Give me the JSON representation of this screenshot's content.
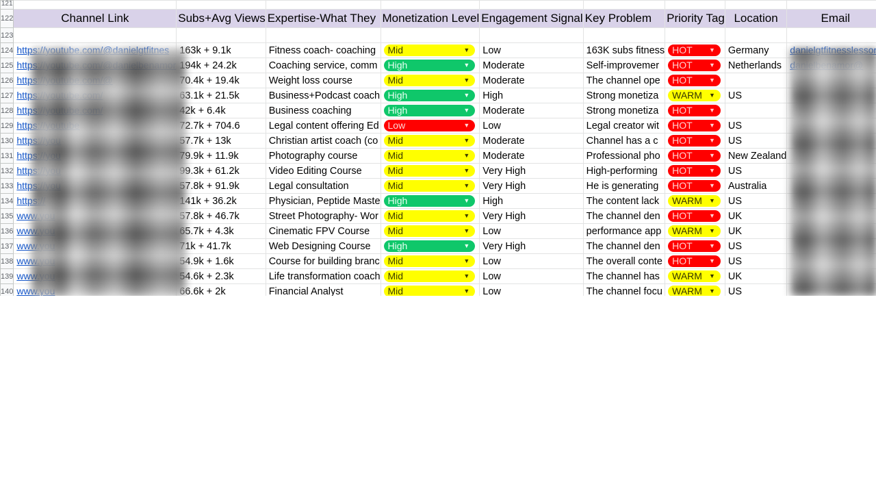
{
  "header": {
    "row_number": "122",
    "columns": [
      "Channel Link",
      "Subs+Avg Views",
      "Expertise-What They",
      "Monetization Level",
      "Engagement Signal",
      "Key Problem",
      "Priority Tag",
      "Location",
      "Email"
    ]
  },
  "row_121": "121",
  "row_123": "123",
  "rows": [
    {
      "n": "124",
      "link": "https://youtube.com/@danielgtfitnes",
      "subs": "163k + 9.1k",
      "expertise": "Fitness coach- coaching",
      "monetization": "Mid",
      "engagement": "Low",
      "problem": "163K subs fitness",
      "priority": "HOT",
      "location": "Germany",
      "email": "danielgtfitnesslessons"
    },
    {
      "n": "125",
      "link": "https://youtube.com/@danielbenamor",
      "subs": "194k + 24.2k",
      "expertise": "Coaching service, comm",
      "monetization": "High",
      "engagement": "Moderate",
      "problem": "Self-improvemer",
      "priority": "HOT",
      "location": "Netherlands",
      "email": "danielbenamor@"
    },
    {
      "n": "126",
      "link": "https://youtube.com/@",
      "subs": "70.4k + 19.4k",
      "expertise": "Weight loss course",
      "monetization": "Mid",
      "engagement": "Moderate",
      "problem": "The channel ope",
      "priority": "HOT",
      "location": "",
      "email": ""
    },
    {
      "n": "127",
      "link": "https://youtube.com/",
      "subs": "63.1k + 21.5k",
      "expertise": "Business+Podcast coach",
      "monetization": "High",
      "engagement": "High",
      "problem": "Strong monetiza",
      "priority": "WARM",
      "location": "US",
      "email": ""
    },
    {
      "n": "128",
      "link": "https://youtube.com/",
      "subs": "42k + 6.4k",
      "expertise": "Business coaching",
      "monetization": "High",
      "engagement": "Moderate",
      "problem": "Strong monetiza",
      "priority": "HOT",
      "location": "",
      "email": ""
    },
    {
      "n": "129",
      "link": "https://youtube",
      "subs": "72.7k + 704.6",
      "expertise": "Legal content offering Ed",
      "monetization": "Low",
      "engagement": "Low",
      "problem": "Legal creator wit",
      "priority": "HOT",
      "location": "US",
      "email": ""
    },
    {
      "n": "130",
      "link": "https://you",
      "subs": "57.7k + 13k",
      "expertise": "Christian artist coach (co",
      "monetization": "Mid",
      "engagement": "Moderate",
      "problem": "Channel has a c",
      "priority": "HOT",
      "location": "US",
      "email": ""
    },
    {
      "n": "131",
      "link": "https://you",
      "subs": "79.9k + 11.9k",
      "expertise": "Photography course",
      "monetization": "Mid",
      "engagement": "Moderate",
      "problem": "Professional pho",
      "priority": "HOT",
      "location": "New Zealand",
      "email": ""
    },
    {
      "n": "132",
      "link": "https://you",
      "subs": "99.3k + 61.2k",
      "expertise": "Video Editing Course",
      "monetization": "Mid",
      "engagement": "Very High",
      "problem": "High-performing",
      "priority": "HOT",
      "location": "US",
      "email": ""
    },
    {
      "n": "133",
      "link": "https://you",
      "subs": "57.8k + 91.9k",
      "expertise": "Legal consultation",
      "monetization": "Mid",
      "engagement": "Very High",
      "problem": "He is generating",
      "priority": "HOT",
      "location": "Australia",
      "email": ""
    },
    {
      "n": "134",
      "link": "https://",
      "subs": "141k + 36.2k",
      "expertise": "Physician, Peptide Maste",
      "monetization": "High",
      "engagement": "High",
      "problem": "The content lack",
      "priority": "WARM",
      "location": "US",
      "email": ""
    },
    {
      "n": "135",
      "link": "www.you",
      "subs": "57.8k + 46.7k",
      "expertise": "Street Photography- Wor",
      "monetization": "Mid",
      "engagement": "Very High",
      "problem": "The channel den",
      "priority": "HOT",
      "location": "UK",
      "email": ""
    },
    {
      "n": "136",
      "link": "www.you",
      "subs": "65.7k + 4.3k",
      "expertise": "Cinematic FPV Course",
      "monetization": "Mid",
      "engagement": "Low",
      "problem": "performance app",
      "priority": "WARM",
      "location": "UK",
      "email": ""
    },
    {
      "n": "137",
      "link": "www.you",
      "subs": "71k + 41.7k",
      "expertise": "Web Designing Course",
      "monetization": "High",
      "engagement": "Very High",
      "problem": "The channel den",
      "priority": "HOT",
      "location": "US",
      "email": ""
    },
    {
      "n": "138",
      "link": "www.you",
      "subs": "54.9k + 1.6k",
      "expertise": "Course for building branc",
      "monetization": "Mid",
      "engagement": "Low",
      "problem": "The overall conte",
      "priority": "HOT",
      "location": "US",
      "email": ""
    },
    {
      "n": "139",
      "link": "www.you",
      "subs": "54.6k + 2.3k",
      "expertise": "Life transformation coach",
      "monetization": "Mid",
      "engagement": "Low",
      "problem": "The channel has",
      "priority": "WARM",
      "location": "UK",
      "email": ""
    },
    {
      "n": "140",
      "link": "www.you",
      "subs": "66.6k + 2k",
      "expertise": "Financial Analyst",
      "monetization": "Mid",
      "engagement": "Low",
      "problem": "The channel focu",
      "priority": "WARM",
      "location": "US",
      "email": ""
    }
  ],
  "colors": {
    "header_bg": "#d9d2e9",
    "mid": "#ffff00",
    "high": "#0fc76a",
    "low": "#ff0000",
    "hot": "#ff0000",
    "warm": "#ffff00",
    "link": "#1155cc"
  },
  "icons": {
    "chip_caret": "dropdown-caret-icon"
  }
}
